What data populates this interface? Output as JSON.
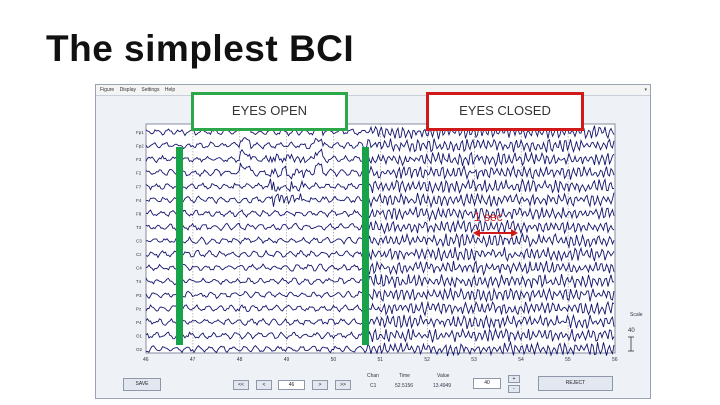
{
  "slide": {
    "title": "The simplest BCI"
  },
  "app": {
    "menu": [
      "Figure",
      "Display",
      "Settings",
      "Help"
    ],
    "menu_arrow": "▾",
    "channels": [
      "Fp1",
      "Fp2",
      "F3",
      "F2",
      "F7",
      "F4",
      "F8",
      "T3",
      "C3",
      "Cz",
      "C4",
      "T4",
      "P3",
      "Pz",
      "P4",
      "O1",
      "O2"
    ],
    "time_ticks": [
      "46",
      "47",
      "48",
      "49",
      "50",
      "51",
      "52",
      "53",
      "54",
      "55",
      "56"
    ],
    "scale_label": "Scale",
    "scale_value": "40",
    "controls": {
      "save_label": "SAVE",
      "first_label": "<<",
      "prev_label": "<",
      "page_value": "46",
      "next_label": ">",
      "last_label": ">>",
      "col_channel": "Chan",
      "col_time": "Time",
      "col_value": "Value",
      "channel": "C1",
      "time": "52.5156",
      "value": "13.4949",
      "scale_field": "40",
      "plus_label": "+",
      "minus_label": "-",
      "reject_label": "REJECT"
    }
  },
  "annotations": {
    "eyes_open": "EYES OPEN",
    "eyes_closed": "EYES CLOSED",
    "one_sec": "1 sec"
  },
  "colors": {
    "eeg_trace": "#14146e",
    "eyes_open_border": "#2aa84a",
    "eyes_closed_border": "#d01a1a",
    "marker_bar": "#17a34a",
    "arrow": "#d01a1a"
  }
}
